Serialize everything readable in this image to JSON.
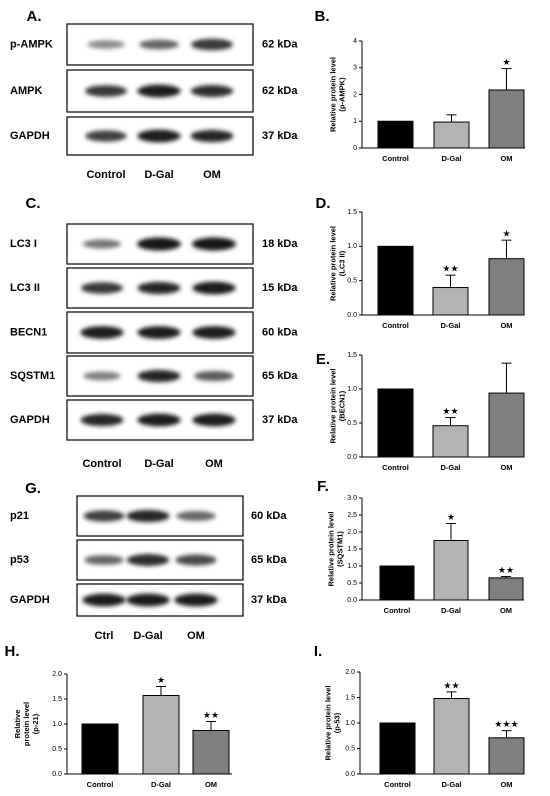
{
  "figure": {
    "blots": [
      {
        "id": "A",
        "letter": "A.",
        "lanes": [
          "Control",
          "D-Gal",
          "OM"
        ],
        "rows": [
          {
            "label": "p-AMPK",
            "kda": "62 kDa",
            "intensity": [
              0.35,
              0.55,
              0.8
            ]
          },
          {
            "label": "AMPK",
            "kda": "62 kDa",
            "intensity": [
              0.8,
              0.95,
              0.85
            ]
          },
          {
            "label": "GAPDH",
            "kda": "37 kDa",
            "intensity": [
              0.75,
              0.95,
              0.9
            ]
          }
        ]
      },
      {
        "id": "C",
        "letter": "C.",
        "lanes": [
          "Control",
          "D-Gal",
          "OM"
        ],
        "rows": [
          {
            "label": "LC3 I",
            "kda": "18 kDa",
            "intensity": [
              0.45,
              1.0,
              1.0
            ]
          },
          {
            "label": "LC3 II",
            "kda": "15 kDa",
            "intensity": [
              0.8,
              0.9,
              0.95
            ]
          },
          {
            "label": "BECN1",
            "kda": "60 kDa",
            "intensity": [
              0.95,
              0.95,
              0.95
            ]
          },
          {
            "label": "SQSTM1",
            "kda": "65 kDa",
            "intensity": [
              0.4,
              0.9,
              0.6
            ]
          },
          {
            "label": "GAPDH",
            "kda": "37 kDa",
            "intensity": [
              0.9,
              0.95,
              0.95
            ]
          }
        ]
      },
      {
        "id": "G",
        "letter": "G.",
        "lanes": [
          "Ctrl",
          "D-Gal",
          "OM"
        ],
        "rows": [
          {
            "label": "p21",
            "kda": "60 kDa",
            "intensity": [
              0.75,
              0.9,
              0.55
            ]
          },
          {
            "label": "p53",
            "kda": "65 kDa",
            "intensity": [
              0.55,
              0.85,
              0.7
            ]
          },
          {
            "label": "GAPDH",
            "kda": "37 kDa",
            "intensity": [
              0.95,
              0.95,
              0.95
            ]
          }
        ]
      }
    ],
    "colors": {
      "control": "#000000",
      "dgal": "#b3b3b3",
      "om": "#7f7f7f"
    }
  },
  "chart_data": [
    {
      "id": "B",
      "letter": "B.",
      "type": "bar",
      "categories": [
        "Control",
        "D-Gal",
        "OM"
      ],
      "values": [
        1.0,
        0.97,
        2.17
      ],
      "errors": [
        0,
        0.27,
        0.8
      ],
      "significance": [
        "",
        "",
        "*"
      ],
      "ylabel": [
        "Relative protein level",
        "(p-AMPK)"
      ],
      "ylim": [
        0,
        4
      ],
      "yticks": [
        "0",
        "1",
        "2",
        "3",
        "4"
      ],
      "ytick_values": [
        0,
        1,
        2,
        3,
        4
      ]
    },
    {
      "id": "D",
      "letter": "D.",
      "type": "bar",
      "categories": [
        "Control",
        "D-Gal",
        "OM"
      ],
      "values": [
        1.0,
        0.4,
        0.82
      ],
      "errors": [
        0,
        0.18,
        0.27
      ],
      "significance": [
        "",
        "**",
        "*"
      ],
      "ylabel": [
        "Relative protein level",
        "(LC3 II)"
      ],
      "ylim": [
        0,
        1.5
      ],
      "yticks": [
        "0.0",
        "0.5",
        "1.0",
        "1.5"
      ],
      "ytick_values": [
        0,
        0.5,
        1,
        1.5
      ]
    },
    {
      "id": "E",
      "letter": "E.",
      "type": "bar",
      "categories": [
        "Control",
        "D-Gal",
        "OM"
      ],
      "values": [
        1.0,
        0.46,
        0.94
      ],
      "errors": [
        0,
        0.12,
        0.44
      ],
      "significance": [
        "",
        "**",
        ""
      ],
      "ylabel": [
        "Relative protein level",
        "(BECN1)"
      ],
      "ylim": [
        0,
        1.5
      ],
      "yticks": [
        "0.0",
        "0.5",
        "1.0",
        "1.5"
      ],
      "ytick_values": [
        0,
        0.5,
        1,
        1.5
      ]
    },
    {
      "id": "F",
      "letter": "F.",
      "type": "bar",
      "categories": [
        "Control",
        "D-Gal",
        "OM"
      ],
      "values": [
        1.0,
        1.75,
        0.65
      ],
      "errors": [
        0,
        0.5,
        0.04
      ],
      "significance": [
        "",
        "*",
        "**"
      ],
      "ylabel": [
        "Relative protein level",
        "(SQSTM1)"
      ],
      "ylim": [
        0,
        3.0
      ],
      "yticks": [
        "0.0",
        "0.5",
        "1.0",
        "1.5",
        "2.0",
        "2.5",
        "3.0"
      ],
      "ytick_values": [
        0,
        0.5,
        1,
        1.5,
        2,
        2.5,
        3
      ]
    },
    {
      "id": "H",
      "letter": "H.",
      "type": "bar",
      "categories": [
        "Control",
        "D-Gal",
        "OM"
      ],
      "values": [
        1.0,
        1.57,
        0.87
      ],
      "errors": [
        0,
        0.18,
        0.18
      ],
      "significance": [
        "",
        "*",
        "**"
      ],
      "ylabel": [
        "Relative",
        "protein level",
        "(p-21)"
      ],
      "ylim": [
        0,
        2.0
      ],
      "yticks": [
        "0.0",
        "0.5",
        "1.0",
        "1.5",
        "2.0"
      ],
      "ytick_values": [
        0,
        0.5,
        1,
        1.5,
        2
      ]
    },
    {
      "id": "I",
      "letter": "I.",
      "type": "bar",
      "categories": [
        "Control",
        "D-Gal",
        "OM"
      ],
      "values": [
        1.0,
        1.48,
        0.71
      ],
      "errors": [
        0,
        0.13,
        0.14
      ],
      "significance": [
        "",
        "**",
        "***"
      ],
      "ylabel": [
        "Relative protein level",
        "(p-53)"
      ],
      "ylim": [
        0,
        2.0
      ],
      "yticks": [
        "0.0",
        "0.5",
        "1.0",
        "1.5",
        "2.0"
      ],
      "ytick_values": [
        0,
        0.5,
        1,
        1.5,
        2
      ]
    }
  ]
}
